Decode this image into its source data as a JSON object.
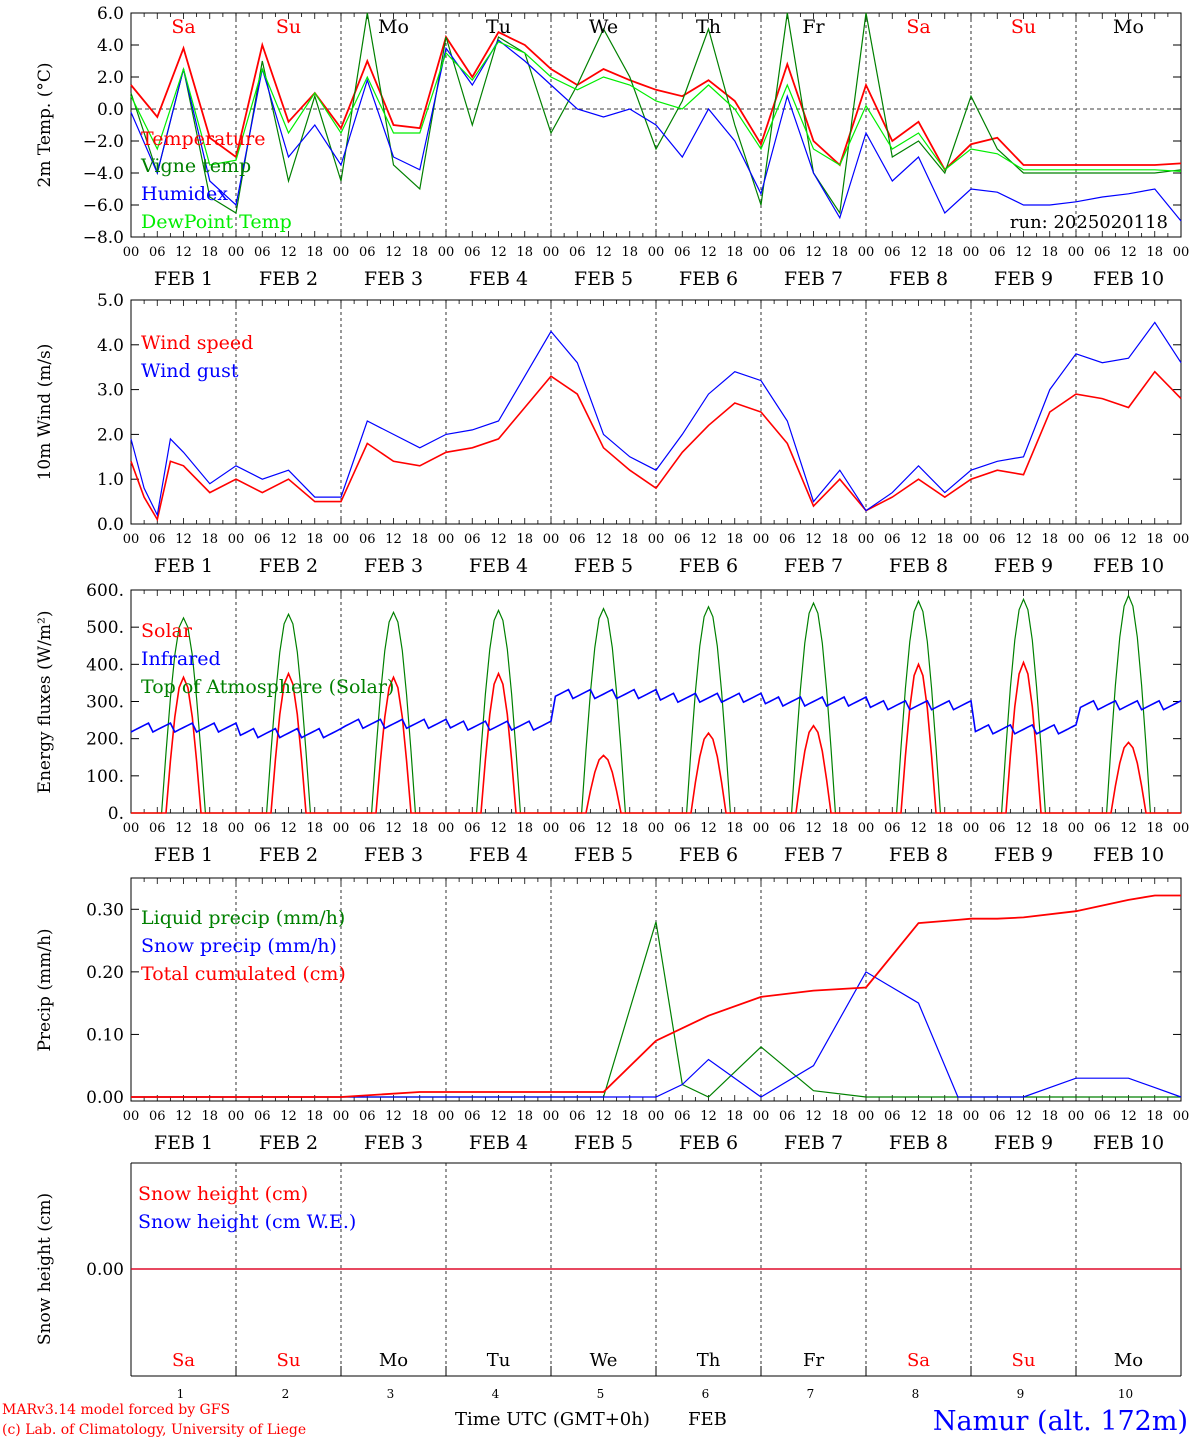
{
  "colors": {
    "red": "#ff0000",
    "green": "#008000",
    "blue": "#0000ff",
    "lightgreen": "#00ee00",
    "black": "#000000"
  },
  "x_axis": {
    "hour_ticks": [
      "00",
      "06",
      "12",
      "18"
    ],
    "final_tick": "00",
    "dates": [
      "FEB  1",
      "FEB  2",
      "FEB  3",
      "FEB  4",
      "FEB  5",
      "FEB  6",
      "FEB  7",
      "FEB  8",
      "FEB  9",
      "FEB 10"
    ],
    "days": [
      "Sa",
      "Su",
      "Mo",
      "Tu",
      "We",
      "Th",
      "Fr",
      "Sa",
      "Su",
      "Mo"
    ],
    "day_colors": [
      "#ff0000",
      "#ff0000",
      "#000000",
      "#000000",
      "#000000",
      "#000000",
      "#000000",
      "#ff0000",
      "#ff0000",
      "#000000"
    ],
    "day_numbers": [
      "1",
      "2",
      "3",
      "4",
      "5",
      "6",
      "7",
      "8",
      "9",
      "10"
    ],
    "bottom_label": "Time UTC (GMT+0h)",
    "bottom_month": "FEB"
  },
  "footer": {
    "credit1": "MARv3.14 model forced by GFS",
    "credit2": "(c) Lab. of Climatology, University of Liege",
    "station": "Namur (alt. 172m)"
  },
  "chart_data": [
    {
      "id": "temperature",
      "type": "line",
      "ylabel": "2m Temp. (°C)",
      "ylim": [
        -8,
        6
      ],
      "yticks": [
        "6.0",
        "4.0",
        "2.0",
        "0.0",
        "−2.0",
        "−4.0",
        "−6.0",
        "−8.0"
      ],
      "ytick_values": [
        6,
        4,
        2,
        0,
        -2,
        -4,
        -6,
        -8
      ],
      "zero_line": true,
      "run_label": "run: 2025020118",
      "x_hours": [
        0,
        6,
        12,
        18,
        24,
        30,
        36,
        42,
        48,
        54,
        60,
        66,
        72,
        78,
        84,
        90,
        96,
        102,
        108,
        114,
        120,
        126,
        132,
        138,
        144,
        150,
        156,
        162,
        168,
        174,
        180,
        186,
        192,
        198,
        204,
        210,
        216,
        222,
        228,
        234,
        240
      ],
      "series": [
        {
          "name": "Temperature",
          "color": "#ff0000",
          "values": [
            1.5,
            -0.5,
            3.8,
            -1.8,
            -3.0,
            4.0,
            -0.8,
            1.0,
            -1.2,
            3.0,
            -1.0,
            -1.2,
            4.5,
            2.0,
            4.8,
            4.0,
            2.5,
            1.5,
            2.5,
            1.8,
            1.2,
            0.8,
            1.8,
            0.5,
            -2.2,
            2.8,
            -2.0,
            -3.5,
            1.5,
            -2.0,
            -0.8,
            -3.8,
            -2.2,
            -1.8,
            -3.5,
            -3.5,
            -3.5,
            -3.5,
            -3.5,
            -3.5,
            -3.4
          ]
        },
        {
          "name": "Vigne temp",
          "color": "#008000",
          "values": [
            1.0,
            -4.0,
            2.5,
            -5.5,
            -6.5,
            3.0,
            -4.5,
            0.8,
            -4.5,
            6.0,
            -3.5,
            -5.0,
            4.5,
            -1.0,
            4.5,
            3.5,
            -1.5,
            1.5,
            5.0,
            2.0,
            -2.5,
            0.5,
            5.0,
            -1.0,
            -6.0,
            6.0,
            -4.0,
            -6.5,
            6.0,
            -3.0,
            -2.0,
            -4.0,
            0.8,
            -2.5,
            -4.0,
            -4.0,
            -4.0,
            -4.0,
            -4.0,
            -4.0,
            -3.8
          ]
        },
        {
          "name": "Humidex",
          "color": "#0000ff",
          "values": [
            -0.2,
            -4.0,
            2.5,
            -4.5,
            -6.0,
            2.5,
            -3.0,
            -1.0,
            -3.5,
            1.8,
            -3.0,
            -3.8,
            3.8,
            1.5,
            4.3,
            3.0,
            1.5,
            0.0,
            -0.5,
            0.0,
            -1.0,
            -3.0,
            0.0,
            -2.0,
            -5.3,
            0.8,
            -4.0,
            -6.8,
            -1.5,
            -4.5,
            -3.0,
            -6.5,
            -5.0,
            -5.2,
            -6.0,
            -6.0,
            -5.8,
            -5.5,
            -5.3,
            -5.0,
            -7.0
          ]
        },
        {
          "name": "DewPoint Temp",
          "color": "#00ee00",
          "values": [
            0.8,
            -2.5,
            2.5,
            -3.5,
            -3.2,
            2.5,
            -1.5,
            1.0,
            -1.5,
            2.0,
            -1.5,
            -1.5,
            3.5,
            1.8,
            4.2,
            3.5,
            2.0,
            1.2,
            2.0,
            1.5,
            0.5,
            0.0,
            1.5,
            0.0,
            -2.5,
            1.5,
            -2.5,
            -3.5,
            0.2,
            -2.5,
            -1.5,
            -3.8,
            -2.5,
            -2.8,
            -3.8,
            -3.8,
            -3.8,
            -3.8,
            -3.8,
            -3.8,
            -3.9
          ]
        }
      ]
    },
    {
      "id": "wind",
      "type": "line",
      "ylabel": "10m Wind (m/s)",
      "ylim": [
        0,
        5
      ],
      "yticks": [
        "5.0",
        "4.0",
        "3.0",
        "2.0",
        "1.0",
        "0.0"
      ],
      "ytick_values": [
        5,
        4,
        3,
        2,
        1,
        0
      ],
      "x_hours": [
        0,
        3,
        6,
        9,
        12,
        18,
        24,
        30,
        36,
        42,
        48,
        54,
        60,
        66,
        72,
        78,
        84,
        90,
        96,
        102,
        108,
        114,
        120,
        126,
        132,
        138,
        144,
        150,
        156,
        162,
        168,
        174,
        180,
        186,
        192,
        198,
        204,
        210,
        216,
        222,
        228,
        234,
        240
      ],
      "series": [
        {
          "name": "Wind speed",
          "color": "#ff0000",
          "values": [
            1.4,
            0.6,
            0.1,
            1.4,
            1.3,
            0.7,
            1.0,
            0.7,
            1.0,
            0.5,
            0.5,
            1.8,
            1.4,
            1.3,
            1.6,
            1.7,
            1.9,
            2.6,
            3.3,
            2.9,
            1.7,
            1.2,
            0.8,
            1.6,
            2.2,
            2.7,
            2.5,
            1.8,
            0.4,
            1.0,
            0.3,
            0.6,
            1.0,
            0.6,
            1.0,
            1.2,
            1.1,
            2.5,
            2.9,
            2.8,
            2.6,
            3.4,
            2.8
          ]
        },
        {
          "name": "Wind gust",
          "color": "#0000ff",
          "values": [
            1.9,
            0.8,
            0.2,
            1.9,
            1.6,
            0.9,
            1.3,
            1.0,
            1.2,
            0.6,
            0.6,
            2.3,
            2.0,
            1.7,
            2.0,
            2.1,
            2.3,
            3.3,
            4.3,
            3.6,
            2.0,
            1.5,
            1.2,
            2.0,
            2.9,
            3.4,
            3.2,
            2.3,
            0.5,
            1.2,
            0.3,
            0.7,
            1.3,
            0.7,
            1.2,
            1.4,
            1.5,
            3.0,
            3.8,
            3.6,
            3.7,
            4.5,
            3.6
          ]
        }
      ]
    },
    {
      "id": "fluxes",
      "type": "line",
      "ylabel": "Energy fluxes (W/m²)",
      "ylim": [
        0,
        600
      ],
      "yticks": [
        "600.",
        "500.",
        "400.",
        "300.",
        "200.",
        "100.",
        "0."
      ],
      "ytick_values": [
        600,
        500,
        400,
        300,
        200,
        100,
        0
      ],
      "solar_peaks": [
        365,
        375,
        365,
        375,
        155,
        215,
        235,
        400,
        405,
        190
      ],
      "toa_peaks": [
        525,
        535,
        540,
        545,
        550,
        555,
        565,
        570,
        575,
        585
      ],
      "infrared_daily": [
        230,
        215,
        240,
        235,
        320,
        310,
        300,
        290,
        225,
        290
      ],
      "series_names": [
        "Solar",
        "Infrared",
        "Top of Atmosphere (Solar)"
      ],
      "series_colors": [
        "#ff0000",
        "#0000ff",
        "#008000"
      ]
    },
    {
      "id": "precip",
      "type": "line",
      "ylabel": "Precip (mm/h)",
      "ylim": [
        0,
        0.35
      ],
      "yticks": [
        "0.30",
        "0.20",
        "0.10",
        "0.00"
      ],
      "ytick_values": [
        0.3,
        0.2,
        0.1,
        0.0
      ],
      "x_hours": [
        0,
        48,
        66,
        96,
        108,
        120,
        126,
        132,
        144,
        156,
        168,
        180,
        189,
        192,
        198,
        204,
        216,
        228,
        234,
        240
      ],
      "series": [
        {
          "name": "Liquid precip (mm/h)",
          "color": "#008000",
          "values": [
            0.0,
            0.0,
            0.0,
            0.0,
            0.0,
            0.28,
            0.02,
            0.0,
            0.08,
            0.01,
            0.0,
            0.0,
            0.0,
            0.0,
            0.0,
            0.0,
            0.0,
            0.0,
            0.0,
            0.0
          ]
        },
        {
          "name": "Snow precip (mm/h)",
          "color": "#0000ff",
          "values": [
            0.0,
            0.0,
            0.0,
            0.0,
            0.0,
            0.0,
            0.02,
            0.06,
            0.0,
            0.05,
            0.2,
            0.15,
            0.0,
            0.0,
            0.0,
            0.0,
            0.03,
            0.03,
            0.015,
            0.0
          ]
        },
        {
          "name": "Total cumulated (cm)",
          "color": "#ff0000",
          "values": [
            0.0,
            0.0,
            0.008,
            0.008,
            0.008,
            0.09,
            0.11,
            0.13,
            0.16,
            0.17,
            0.175,
            0.278,
            0.283,
            0.285,
            0.285,
            0.287,
            0.297,
            0.315,
            0.322,
            0.322
          ]
        }
      ]
    },
    {
      "id": "snow",
      "type": "line",
      "ylabel": "Snow height (cm)",
      "yticks": [
        "0.00"
      ],
      "ytick_values": [
        0.0
      ],
      "series": [
        {
          "name": "Snow height (cm)",
          "color": "#ff0000",
          "values": [
            0.0,
            0.0
          ]
        },
        {
          "name": "Snow height (cm W.E.)",
          "color": "#0000ff",
          "values": [
            0.0,
            0.0
          ]
        }
      ]
    }
  ]
}
